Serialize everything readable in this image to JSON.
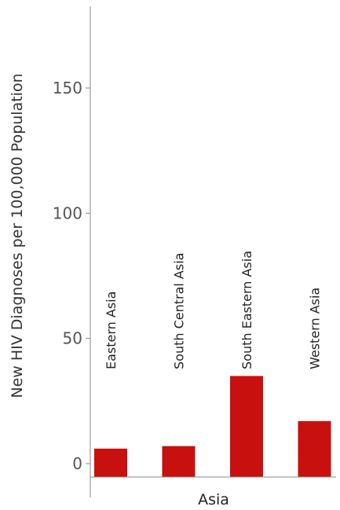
{
  "chart_data": {
    "type": "bar",
    "ylabel": "New HIV Diagnoses per 100,000 Population",
    "xlabel": "Asia",
    "categories": [
      "Eastern Asia",
      "South Central Asia",
      "South Eastern Asia",
      "Western Asia"
    ],
    "values": [
      6,
      7,
      35,
      17
    ],
    "yticks": [
      0,
      50,
      100,
      150
    ],
    "ylim": [
      -8,
      182
    ],
    "grid": false,
    "legend": "none",
    "bar_color": "#c8100f",
    "axis_color": "#888888"
  }
}
